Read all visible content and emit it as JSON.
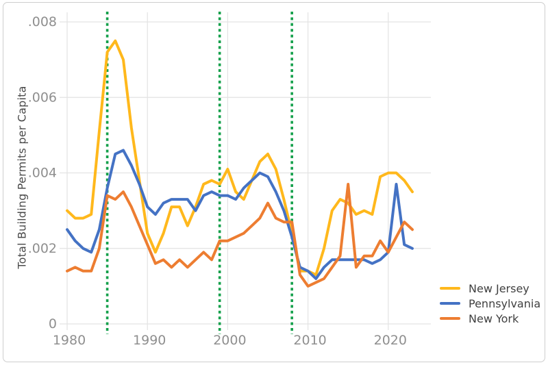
{
  "chart_data": {
    "type": "line",
    "title": "",
    "xlabel": "",
    "ylabel": "Total Building Permits per Capita",
    "xlim": [
      1980,
      2023
    ],
    "ylim": [
      0,
      0.008
    ],
    "grid": true,
    "legend_position": "bottom-right",
    "x_tick_values": [
      1980,
      1990,
      2000,
      2010,
      2020
    ],
    "x_tick_labels": [
      "1980",
      "1990",
      "2000",
      "2010",
      "2020"
    ],
    "y_tick_values": [
      0,
      0.002,
      0.004,
      0.006,
      0.008
    ],
    "y_tick_labels": [
      "0",
      ".002",
      ".004",
      ".006",
      ".008"
    ],
    "x": [
      1980,
      1981,
      1982,
      1983,
      1984,
      1985,
      1986,
      1987,
      1988,
      1989,
      1990,
      1991,
      1992,
      1993,
      1994,
      1995,
      1996,
      1997,
      1998,
      1999,
      2000,
      2001,
      2002,
      2003,
      2004,
      2005,
      2006,
      2007,
      2008,
      2009,
      2010,
      2011,
      2012,
      2013,
      2014,
      2015,
      2016,
      2017,
      2018,
      2019,
      2020,
      2021,
      2022,
      2023
    ],
    "series": [
      {
        "name": "New Jersey",
        "color": "#FFB81C",
        "values": [
          0.003,
          0.0028,
          0.0028,
          0.0029,
          0.0051,
          0.0072,
          0.0075,
          0.007,
          0.0052,
          0.0038,
          0.0024,
          0.0019,
          0.0024,
          0.0031,
          0.0031,
          0.0026,
          0.0031,
          0.0037,
          0.0038,
          0.0037,
          0.0041,
          0.0035,
          0.0033,
          0.0038,
          0.0043,
          0.0045,
          0.0041,
          0.0033,
          0.0024,
          0.0014,
          0.0014,
          0.0013,
          0.002,
          0.003,
          0.0033,
          0.0032,
          0.0029,
          0.003,
          0.0029,
          0.0039,
          0.004,
          0.004,
          0.0038,
          0.0035
        ]
      },
      {
        "name": "Pennsylvania",
        "color": "#4472C4",
        "values": [
          0.0025,
          0.0022,
          0.002,
          0.0019,
          0.0025,
          0.0036,
          0.0045,
          0.0046,
          0.0042,
          0.0037,
          0.0031,
          0.0029,
          0.0032,
          0.0033,
          0.0033,
          0.0033,
          0.003,
          0.0034,
          0.0035,
          0.0034,
          0.0034,
          0.0033,
          0.0036,
          0.0038,
          0.004,
          0.0039,
          0.0035,
          0.003,
          0.0023,
          0.0015,
          0.0014,
          0.0012,
          0.0015,
          0.0017,
          0.0017,
          0.0017,
          0.0017,
          0.0017,
          0.0016,
          0.0017,
          0.0019,
          0.0037,
          0.0021,
          0.002
        ]
      },
      {
        "name": "New York",
        "color": "#ED7D31",
        "values": [
          0.0014,
          0.0015,
          0.0014,
          0.0014,
          0.002,
          0.0034,
          0.0033,
          0.0035,
          0.0031,
          0.0026,
          0.0021,
          0.0016,
          0.0017,
          0.0015,
          0.0017,
          0.0015,
          0.0017,
          0.0019,
          0.0017,
          0.0022,
          0.0022,
          0.0023,
          0.0024,
          0.0026,
          0.0028,
          0.0032,
          0.0028,
          0.0027,
          0.0027,
          0.0013,
          0.001,
          0.0011,
          0.0012,
          0.0015,
          0.0018,
          0.0037,
          0.0015,
          0.0018,
          0.0018,
          0.0022,
          0.0019,
          0.0023,
          0.0027,
          0.0025
        ]
      }
    ],
    "vlines": {
      "years": [
        1985,
        1999,
        2008
      ],
      "style": "dashed",
      "color": "#14A04B"
    }
  },
  "style_colors": {
    "gridline": "#E3E3E3",
    "tick_label": "#8F8F8F",
    "axis_title": "#4A4A4A",
    "legend_text": "#3F3F3F",
    "frame_border": "#CDCDCD"
  }
}
